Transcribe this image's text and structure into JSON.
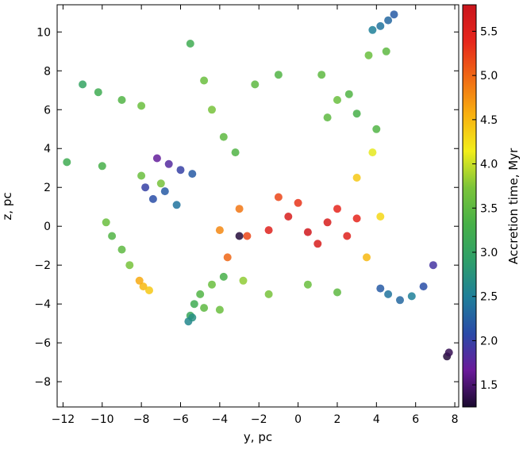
{
  "chart_data": {
    "type": "scatter",
    "title": "",
    "xlabel": "y, pc",
    "ylabel": "z, pc",
    "xlim": [
      -12.3,
      8.2
    ],
    "ylim": [
      -9.3,
      11.4
    ],
    "xticks": [
      -12,
      -10,
      -8,
      -6,
      -4,
      -2,
      0,
      2,
      4,
      6,
      8
    ],
    "xtick_labels": [
      "−12",
      "−10",
      "−8",
      "−6",
      "−4",
      "−2",
      "0",
      "2",
      "4",
      "6",
      "8"
    ],
    "yticks": [
      -8,
      -6,
      -4,
      -2,
      0,
      2,
      4,
      6,
      8,
      10
    ],
    "ytick_labels": [
      "−8",
      "−6",
      "−4",
      "−2",
      "0",
      "2",
      "4",
      "6",
      "8",
      "10"
    ],
    "grid": false,
    "colorbar": {
      "label": "Accretion time, Myr",
      "range": [
        1.25,
        5.8
      ],
      "ticks": [
        1.5,
        2.0,
        2.5,
        3.0,
        3.5,
        4.0,
        4.5,
        5.0,
        5.5
      ],
      "tick_labels": [
        "1.5",
        "2.0",
        "2.5",
        "3.0",
        "3.5",
        "4.0",
        "4.5",
        "5.0",
        "5.5"
      ],
      "colormap": [
        "#1a0a2e",
        "#6a1a9a",
        "#2a4aa8",
        "#1f7f9a",
        "#2e9f6a",
        "#47b048",
        "#7bc43a",
        "#f2ee1a",
        "#f8b010",
        "#f06a14",
        "#e6261c",
        "#c9141c"
      ]
    },
    "series": [
      {
        "x": [
          -1.5,
          -0.5,
          0.5,
          1.5,
          2.5,
          3.0,
          1.0,
          0.0,
          -1.0,
          2.0
        ],
        "y": [
          -0.2,
          0.5,
          -0.3,
          0.2,
          -0.5,
          0.4,
          -0.9,
          1.2,
          1.5,
          0.9
        ],
        "t": [
          5.5,
          5.6,
          5.7,
          5.6,
          5.5,
          5.4,
          5.6,
          5.3,
          5.2,
          5.4
        ]
      },
      {
        "x": [
          -3.6,
          -2.6,
          -3.0,
          -4.0,
          3.5,
          4.2,
          3.0
        ],
        "y": [
          -1.6,
          -0.5,
          0.9,
          -0.2,
          -1.6,
          0.5,
          2.5
        ],
        "t": [
          5.0,
          5.2,
          4.9,
          4.8,
          4.5,
          4.3,
          4.4
        ]
      },
      {
        "x": [
          -7.9,
          -8.1,
          -7.6
        ],
        "y": [
          -3.1,
          -2.8,
          -3.3
        ],
        "t": [
          4.5,
          4.6,
          4.4
        ]
      },
      {
        "x": [
          -4.8,
          -5.0,
          -4.4,
          -3.8,
          -5.5,
          -4.0,
          -1.5,
          0.5,
          2.0,
          -2.8,
          -5.3
        ],
        "y": [
          -4.2,
          -3.5,
          -3.0,
          -2.6,
          -4.6,
          -4.3,
          -3.5,
          -3.0,
          -3.4,
          -2.8,
          -4.0
        ],
        "t": [
          3.5,
          3.4,
          3.6,
          3.3,
          3.1,
          3.6,
          3.7,
          3.6,
          3.5,
          3.8,
          3.2
        ]
      },
      {
        "x": [
          -9.8,
          -9.5,
          -9.0,
          -8.6
        ],
        "y": [
          0.2,
          -0.5,
          -1.2,
          -2.0
        ],
        "t": [
          3.6,
          3.4,
          3.5,
          3.7
        ]
      },
      {
        "x": [
          -11.8,
          -10.0,
          -8.0,
          -7.0,
          -5.5,
          -4.8,
          -4.4,
          -3.8,
          -3.2,
          -2.2,
          -1.0
        ],
        "y": [
          3.3,
          3.1,
          2.6,
          2.2,
          9.4,
          7.5,
          6.0,
          4.6,
          3.8,
          7.3,
          7.8
        ],
        "t": [
          3.2,
          3.3,
          3.6,
          3.7,
          3.2,
          3.6,
          3.7,
          3.5,
          3.4,
          3.5,
          3.4
        ]
      },
      {
        "x": [
          -11.0,
          -10.2,
          -9.0,
          -8.0
        ],
        "y": [
          7.3,
          6.9,
          6.5,
          6.2
        ],
        "t": [
          3.0,
          3.2,
          3.4,
          3.6
        ]
      },
      {
        "x": [
          1.2,
          2.0,
          3.0,
          4.0,
          4.5,
          3.8,
          3.6,
          2.6,
          1.5
        ],
        "y": [
          7.8,
          6.5,
          5.8,
          5.0,
          9.0,
          3.8,
          8.8,
          6.8,
          5.6
        ],
        "t": [
          3.5,
          3.6,
          3.3,
          3.4,
          3.5,
          4.1,
          3.6,
          3.4,
          3.5
        ]
      },
      {
        "x": [
          3.8,
          4.2,
          4.6,
          4.9
        ],
        "y": [
          10.1,
          10.3,
          10.6,
          10.9
        ],
        "t": [
          2.5,
          2.4,
          2.3,
          2.2
        ]
      },
      {
        "x": [
          4.2,
          4.6,
          5.2,
          5.8,
          6.4,
          6.9
        ],
        "y": [
          -3.2,
          -3.5,
          -3.8,
          -3.6,
          -3.1,
          -2.0
        ],
        "t": [
          2.2,
          2.4,
          2.3,
          2.5,
          2.1,
          1.9
        ]
      },
      {
        "x": [
          -6.8,
          -7.4,
          -6.2,
          -7.8
        ],
        "y": [
          1.8,
          1.4,
          1.1,
          2.0
        ],
        "t": [
          2.2,
          2.1,
          2.4,
          2.0
        ]
      },
      {
        "x": [
          -7.2,
          -6.6,
          -6.0,
          -5.4
        ],
        "y": [
          3.5,
          3.2,
          2.9,
          2.7
        ],
        "t": [
          1.7,
          1.8,
          2.0,
          2.2
        ]
      },
      {
        "x": [
          -3.0,
          7.6,
          7.7
        ],
        "y": [
          -0.5,
          -6.7,
          -6.5
        ],
        "t": [
          1.3,
          1.3,
          1.4
        ]
      },
      {
        "x": [
          -5.6,
          -5.4
        ],
        "y": [
          -4.9,
          -4.7
        ],
        "t": [
          2.6,
          2.7
        ]
      }
    ]
  }
}
